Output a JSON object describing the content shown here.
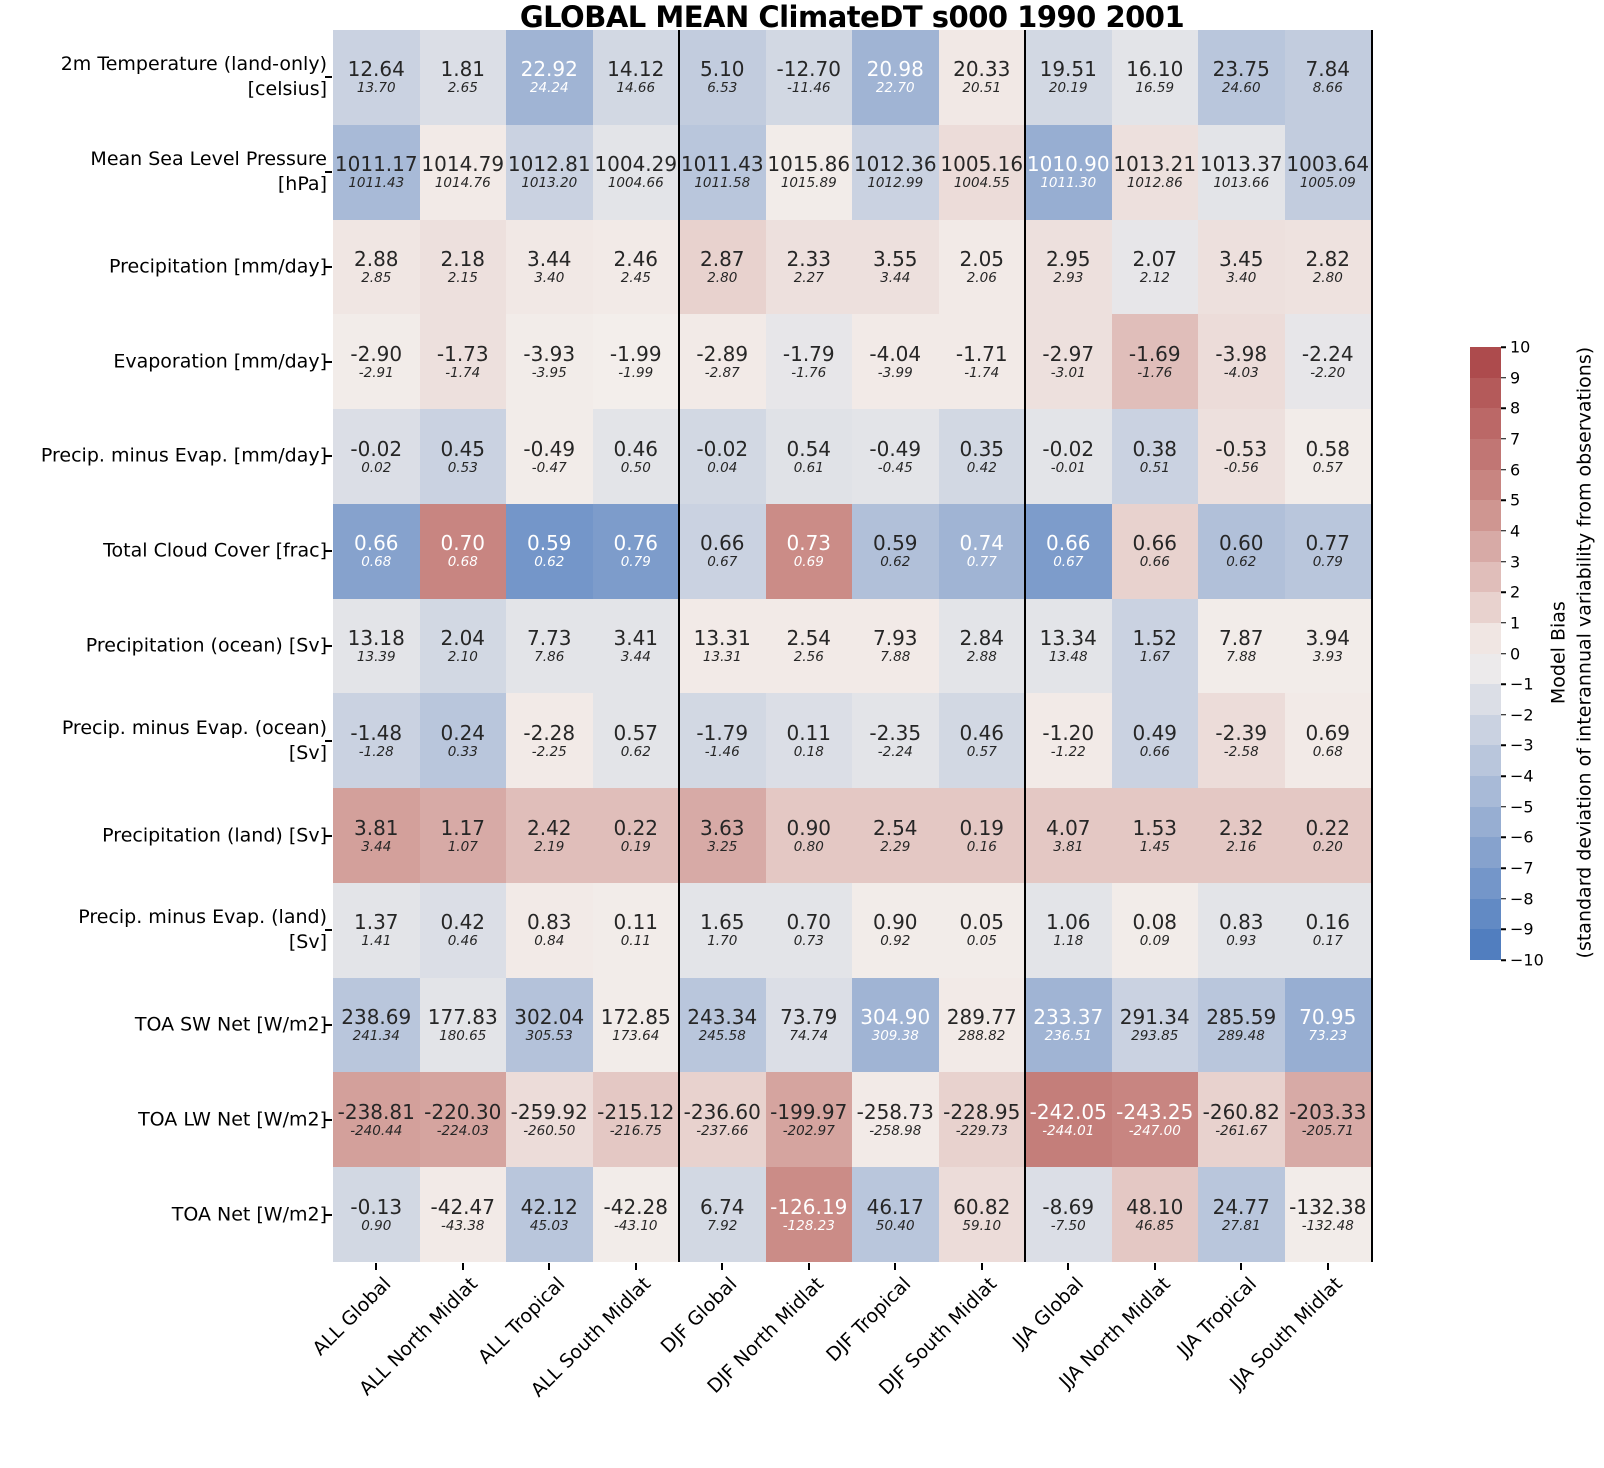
{
  "chart_data": {
    "type": "heatmap",
    "title": "GLOBAL MEAN ClimateDT s000 1990 2001",
    "columns": [
      "ALL Global",
      "ALL North Midlat",
      "ALL Tropical",
      "ALL South Midlat",
      "DJF Global",
      "DJF North Midlat",
      "DJF Tropical",
      "DJF South Midlat",
      "JJA Global",
      "JJA North Midlat",
      "JJA Tropical",
      "JJA South Midlat"
    ],
    "group_separators_after_columns": [
      4,
      8
    ],
    "cell_note": "each cell: v = model value (large), s = observation/reference value (small italic), b = model bias in std-dev units (drives cell color, range -10..10)",
    "colorbar": {
      "label_line1": "Model Bias",
      "label_line2": "(standard deviation of interannual variability from observations)",
      "vmin": -10,
      "vmax": 10,
      "ticks": [
        10,
        9,
        8,
        7,
        6,
        5,
        4,
        3,
        2,
        1,
        0,
        -1,
        -2,
        -3,
        -4,
        -5,
        -6,
        -7,
        -8,
        -9,
        -10
      ],
      "position": "right",
      "n_segments": 20
    },
    "colors": {
      "negative_end": "#4878bd",
      "negative_mid": "#a0b4d4",
      "zero": "#f4f0ed",
      "positive_mid": "#cb8c87",
      "positive_end": "#aa4446",
      "text_dark": "#262626",
      "text_light": "#ffffff",
      "separator": "#000000"
    },
    "rows": [
      {
        "label_lines": [
          "2m Temperature (land-only)",
          "[celsius]"
        ],
        "cells": [
          {
            "v": "12.64",
            "s": "13.70",
            "b": -2.5
          },
          {
            "v": "1.81",
            "s": "2.65",
            "b": -1.5
          },
          {
            "v": "22.92",
            "s": "24.24",
            "b": -5
          },
          {
            "v": "14.12",
            "s": "14.66",
            "b": -2
          },
          {
            "v": "5.10",
            "s": "6.53",
            "b": -3
          },
          {
            "v": "-12.70",
            "s": "-11.46",
            "b": -2
          },
          {
            "v": "20.98",
            "s": "22.70",
            "b": -5
          },
          {
            "v": "20.33",
            "s": "20.51",
            "b": 0.4
          },
          {
            "v": "19.51",
            "s": "20.19",
            "b": -2
          },
          {
            "v": "16.10",
            "s": "16.59",
            "b": -1
          },
          {
            "v": "23.75",
            "s": "24.60",
            "b": -3.5
          },
          {
            "v": "7.84",
            "s": "8.66",
            "b": -3
          }
        ]
      },
      {
        "label_lines": [
          "Mean Sea Level Pressure",
          "[hPa]"
        ],
        "cells": [
          {
            "v": "1011.17",
            "s": "1011.43",
            "b": -4.5
          },
          {
            "v": "1014.79",
            "s": "1014.76",
            "b": 0.3
          },
          {
            "v": "1012.81",
            "s": "1013.20",
            "b": -2.5
          },
          {
            "v": "1004.29",
            "s": "1004.66",
            "b": -1
          },
          {
            "v": "1011.43",
            "s": "1011.58",
            "b": -3.5
          },
          {
            "v": "1015.86",
            "s": "1015.89",
            "b": 0.2
          },
          {
            "v": "1012.36",
            "s": "1012.99",
            "b": -2.5
          },
          {
            "v": "1005.16",
            "s": "1004.55",
            "b": 1
          },
          {
            "v": "1010.90",
            "s": "1011.30",
            "b": -5.5
          },
          {
            "v": "1013.21",
            "s": "1012.86",
            "b": 0.8
          },
          {
            "v": "1013.37",
            "s": "1013.66",
            "b": -1
          },
          {
            "v": "1003.64",
            "s": "1005.09",
            "b": -3
          }
        ]
      },
      {
        "label_lines": [
          "Precipitation [mm/day]"
        ],
        "cells": [
          {
            "v": "2.88",
            "s": "2.85",
            "b": 0.5
          },
          {
            "v": "2.18",
            "s": "2.15",
            "b": 0.8
          },
          {
            "v": "3.44",
            "s": "3.40",
            "b": 0.4
          },
          {
            "v": "2.46",
            "s": "2.45",
            "b": 0.3
          },
          {
            "v": "2.87",
            "s": "2.80",
            "b": 1.5
          },
          {
            "v": "2.33",
            "s": "2.27",
            "b": 0.8
          },
          {
            "v": "3.55",
            "s": "3.44",
            "b": 0.8
          },
          {
            "v": "2.05",
            "s": "2.06",
            "b": 0.3
          },
          {
            "v": "2.95",
            "s": "2.93",
            "b": 0.8
          },
          {
            "v": "2.07",
            "s": "2.12",
            "b": -0.8
          },
          {
            "v": "3.45",
            "s": "3.40",
            "b": 0.8
          },
          {
            "v": "2.82",
            "s": "2.80",
            "b": 0.7
          }
        ]
      },
      {
        "label_lines": [
          "Evaporation [mm/day]"
        ],
        "cells": [
          {
            "v": "-2.90",
            "s": "-2.91",
            "b": 0.2
          },
          {
            "v": "-1.73",
            "s": "-1.74",
            "b": 0.8
          },
          {
            "v": "-3.93",
            "s": "-3.95",
            "b": 0.2
          },
          {
            "v": "-1.99",
            "s": "-1.99",
            "b": 0.1
          },
          {
            "v": "-2.89",
            "s": "-2.87",
            "b": 0.3
          },
          {
            "v": "-1.79",
            "s": "-1.76",
            "b": -0.8
          },
          {
            "v": "-4.04",
            "s": "-3.99",
            "b": 0.3
          },
          {
            "v": "-1.71",
            "s": "-1.74",
            "b": 0.3
          },
          {
            "v": "-2.97",
            "s": "-3.01",
            "b": 0.8
          },
          {
            "v": "-1.69",
            "s": "-1.76",
            "b": 2.5
          },
          {
            "v": "-3.98",
            "s": "-4.03",
            "b": 1
          },
          {
            "v": "-2.24",
            "s": "-2.20",
            "b": -0.8
          }
        ]
      },
      {
        "label_lines": [
          "Precip. minus Evap. [mm/day]"
        ],
        "cells": [
          {
            "v": "-0.02",
            "s": "0.02",
            "b": -1.5
          },
          {
            "v": "0.45",
            "s": "0.53",
            "b": -2.5
          },
          {
            "v": "-0.49",
            "s": "-0.47",
            "b": 0.2
          },
          {
            "v": "0.46",
            "s": "0.50",
            "b": -1
          },
          {
            "v": "-0.02",
            "s": "0.04",
            "b": -2
          },
          {
            "v": "0.54",
            "s": "0.61",
            "b": -1.2
          },
          {
            "v": "-0.49",
            "s": "-0.45",
            "b": -1
          },
          {
            "v": "0.35",
            "s": "0.42",
            "b": -2
          },
          {
            "v": "-0.02",
            "s": "-0.01",
            "b": -1
          },
          {
            "v": "0.38",
            "s": "0.51",
            "b": -2.5
          },
          {
            "v": "-0.53",
            "s": "-0.56",
            "b": 0.8
          },
          {
            "v": "0.58",
            "s": "0.57",
            "b": 0.2
          }
        ]
      },
      {
        "label_lines": [
          "Total Cloud Cover [frac]"
        ],
        "cells": [
          {
            "v": "0.66",
            "s": "0.68",
            "b": -6.5
          },
          {
            "v": "0.70",
            "s": "0.68",
            "b": 5.5
          },
          {
            "v": "0.59",
            "s": "0.62",
            "b": -7.5
          },
          {
            "v": "0.76",
            "s": "0.79",
            "b": -7
          },
          {
            "v": "0.66",
            "s": "0.67",
            "b": -2.5
          },
          {
            "v": "0.73",
            "s": "0.69",
            "b": 5
          },
          {
            "v": "0.59",
            "s": "0.62",
            "b": -4
          },
          {
            "v": "0.74",
            "s": "0.77",
            "b": -5
          },
          {
            "v": "0.66",
            "s": "0.67",
            "b": -7
          },
          {
            "v": "0.66",
            "s": "0.66",
            "b": 1.5
          },
          {
            "v": "0.60",
            "s": "0.62",
            "b": -4
          },
          {
            "v": "0.77",
            "s": "0.79",
            "b": -3.5
          }
        ]
      },
      {
        "label_lines": [
          "Precipitation (ocean) [Sv]"
        ],
        "cells": [
          {
            "v": "13.18",
            "s": "13.39",
            "b": -1
          },
          {
            "v": "2.04",
            "s": "2.10",
            "b": -2
          },
          {
            "v": "7.73",
            "s": "7.86",
            "b": -1
          },
          {
            "v": "3.41",
            "s": "3.44",
            "b": -1
          },
          {
            "v": "13.31",
            "s": "13.31",
            "b": 0.3
          },
          {
            "v": "2.54",
            "s": "2.56",
            "b": 0.3
          },
          {
            "v": "7.93",
            "s": "7.88",
            "b": 0.3
          },
          {
            "v": "2.84",
            "s": "2.88",
            "b": -1
          },
          {
            "v": "13.34",
            "s": "13.48",
            "b": -1
          },
          {
            "v": "1.52",
            "s": "1.67",
            "b": -2.5
          },
          {
            "v": "7.87",
            "s": "7.88",
            "b": 0.2
          },
          {
            "v": "3.94",
            "s": "3.93",
            "b": 0.2
          }
        ]
      },
      {
        "label_lines": [
          "Precip. minus Evap. (ocean)",
          "[Sv]"
        ],
        "cells": [
          {
            "v": "-1.48",
            "s": "-1.28",
            "b": -2.5
          },
          {
            "v": "0.24",
            "s": "0.33",
            "b": -3.5
          },
          {
            "v": "-2.28",
            "s": "-2.25",
            "b": 0.3
          },
          {
            "v": "0.57",
            "s": "0.62",
            "b": -1
          },
          {
            "v": "-1.79",
            "s": "-1.46",
            "b": -2
          },
          {
            "v": "0.11",
            "s": "0.18",
            "b": -1.5
          },
          {
            "v": "-2.35",
            "s": "-2.24",
            "b": -1
          },
          {
            "v": "0.46",
            "s": "0.57",
            "b": -2
          },
          {
            "v": "-1.20",
            "s": "-1.22",
            "b": 0.3
          },
          {
            "v": "0.49",
            "s": "0.66",
            "b": -2.5
          },
          {
            "v": "-2.39",
            "s": "-2.58",
            "b": 1
          },
          {
            "v": "0.69",
            "s": "0.68",
            "b": 0.3
          }
        ]
      },
      {
        "label_lines": [
          "Precipitation (land) [Sv]"
        ],
        "cells": [
          {
            "v": "3.81",
            "s": "3.44",
            "b": 4
          },
          {
            "v": "1.17",
            "s": "1.07",
            "b": 3.5
          },
          {
            "v": "2.42",
            "s": "2.19",
            "b": 2.5
          },
          {
            "v": "0.22",
            "s": "0.19",
            "b": 2.5
          },
          {
            "v": "3.63",
            "s": "3.25",
            "b": 3.5
          },
          {
            "v": "0.90",
            "s": "0.80",
            "b": 2
          },
          {
            "v": "2.54",
            "s": "2.29",
            "b": 2
          },
          {
            "v": "0.19",
            "s": "0.16",
            "b": 2
          },
          {
            "v": "4.07",
            "s": "3.81",
            "b": 2
          },
          {
            "v": "1.53",
            "s": "1.45",
            "b": 2
          },
          {
            "v": "2.32",
            "s": "2.16",
            "b": 2
          },
          {
            "v": "0.22",
            "s": "0.20",
            "b": 2
          }
        ]
      },
      {
        "label_lines": [
          "Precip. minus Evap. (land)",
          "[Sv]"
        ],
        "cells": [
          {
            "v": "1.37",
            "s": "1.41",
            "b": -1
          },
          {
            "v": "0.42",
            "s": "0.46",
            "b": -1.5
          },
          {
            "v": "0.83",
            "s": "0.84",
            "b": 0.3
          },
          {
            "v": "0.11",
            "s": "0.11",
            "b": 0.2
          },
          {
            "v": "1.65",
            "s": "1.70",
            "b": -1
          },
          {
            "v": "0.70",
            "s": "0.73",
            "b": -1
          },
          {
            "v": "0.90",
            "s": "0.92",
            "b": 0.2
          },
          {
            "v": "0.05",
            "s": "0.05",
            "b": 0.2
          },
          {
            "v": "1.06",
            "s": "1.18",
            "b": -1
          },
          {
            "v": "0.08",
            "s": "0.09",
            "b": 0.2
          },
          {
            "v": "0.83",
            "s": "0.93",
            "b": -1
          },
          {
            "v": "0.16",
            "s": "0.17",
            "b": -1
          }
        ]
      },
      {
        "label_lines": [
          "TOA SW Net [W/m2]"
        ],
        "cells": [
          {
            "v": "238.69",
            "s": "241.34",
            "b": -3.5
          },
          {
            "v": "177.83",
            "s": "180.65",
            "b": -1
          },
          {
            "v": "302.04",
            "s": "305.53",
            "b": -3.8
          },
          {
            "v": "172.85",
            "s": "173.64",
            "b": 0.2
          },
          {
            "v": "243.34",
            "s": "245.58",
            "b": -3.5
          },
          {
            "v": "73.79",
            "s": "74.74",
            "b": -1.5
          },
          {
            "v": "304.90",
            "s": "309.38",
            "b": -5
          },
          {
            "v": "289.77",
            "s": "288.82",
            "b": 0.3
          },
          {
            "v": "233.37",
            "s": "236.51",
            "b": -5
          },
          {
            "v": "291.34",
            "s": "293.85",
            "b": -2.5
          },
          {
            "v": "285.59",
            "s": "289.48",
            "b": -3.5
          },
          {
            "v": "70.95",
            "s": "73.23",
            "b": -5.5
          }
        ]
      },
      {
        "label_lines": [
          "TOA LW Net [W/m2]"
        ],
        "cells": [
          {
            "v": "-238.81",
            "s": "-240.44",
            "b": 4
          },
          {
            "v": "-220.30",
            "s": "-224.03",
            "b": 3.8
          },
          {
            "v": "-259.92",
            "s": "-260.50",
            "b": 1
          },
          {
            "v": "-215.12",
            "s": "-216.75",
            "b": 2
          },
          {
            "v": "-236.60",
            "s": "-237.66",
            "b": 1.5
          },
          {
            "v": "-199.97",
            "s": "-202.97",
            "b": 3.8
          },
          {
            "v": "-258.73",
            "s": "-258.98",
            "b": 0.3
          },
          {
            "v": "-228.95",
            "s": "-229.73",
            "b": 1.5
          },
          {
            "v": "-242.05",
            "s": "-244.01",
            "b": 6
          },
          {
            "v": "-243.25",
            "s": "-247.00",
            "b": 5.5
          },
          {
            "v": "-260.82",
            "s": "-261.67",
            "b": 1.5
          },
          {
            "v": "-203.33",
            "s": "-205.71",
            "b": 3.5
          }
        ]
      },
      {
        "label_lines": [
          "TOA Net [W/m2]"
        ],
        "cells": [
          {
            "v": "-0.13",
            "s": "0.90",
            "b": -2
          },
          {
            "v": "-42.47",
            "s": "-43.38",
            "b": 0.3
          },
          {
            "v": "42.12",
            "s": "45.03",
            "b": -3.5
          },
          {
            "v": "-42.28",
            "s": "-43.10",
            "b": 0.2
          },
          {
            "v": "6.74",
            "s": "7.92",
            "b": -2
          },
          {
            "v": "-126.19",
            "s": "-128.23",
            "b": 5
          },
          {
            "v": "46.17",
            "s": "50.40",
            "b": -3.5
          },
          {
            "v": "60.82",
            "s": "59.10",
            "b": 1
          },
          {
            "v": "-8.69",
            "s": "-7.50",
            "b": -1.5
          },
          {
            "v": "48.10",
            "s": "46.85",
            "b": 2
          },
          {
            "v": "24.77",
            "s": "27.81",
            "b": -3.5
          },
          {
            "v": "-132.38",
            "s": "-132.48",
            "b": 0.2
          }
        ]
      }
    ]
  }
}
